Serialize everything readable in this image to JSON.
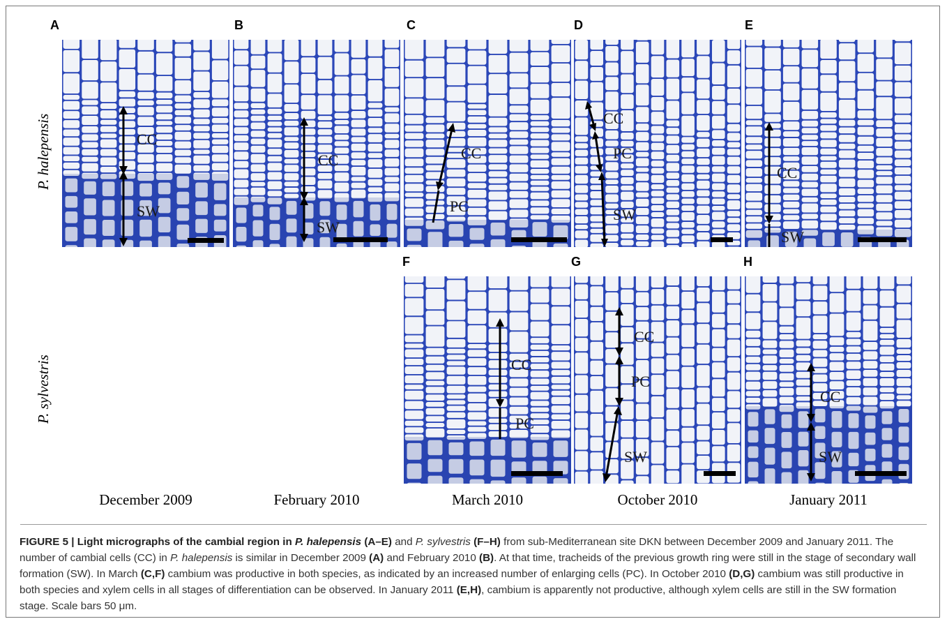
{
  "panels": [
    {
      "id": "A",
      "zones": [
        {
          "name": "CC"
        },
        {
          "name": "SW"
        }
      ]
    },
    {
      "id": "B",
      "zones": [
        {
          "name": "CC"
        },
        {
          "name": "SW"
        }
      ]
    },
    {
      "id": "C",
      "zones": [
        {
          "name": "CC"
        },
        {
          "name": "PC"
        }
      ]
    },
    {
      "id": "D",
      "zones": [
        {
          "name": "CC"
        },
        {
          "name": "PC"
        },
        {
          "name": "SW"
        }
      ]
    },
    {
      "id": "E",
      "zones": [
        {
          "name": "CC"
        },
        {
          "name": "SW"
        }
      ]
    },
    {
      "id": "F",
      "zones": [
        {
          "name": "CC"
        },
        {
          "name": "PC"
        }
      ]
    },
    {
      "id": "G",
      "zones": [
        {
          "name": "CC"
        },
        {
          "name": "PC"
        },
        {
          "name": "SW"
        }
      ]
    },
    {
      "id": "H",
      "zones": [
        {
          "name": "CC"
        },
        {
          "name": "SW"
        }
      ]
    }
  ],
  "species": {
    "row1": "P. halepensis",
    "row2": "P. sylvestris"
  },
  "dates": [
    "December 2009",
    "February 2010",
    "March 2010",
    "October 2010",
    "January 2011"
  ],
  "caption": {
    "fig": "FIGURE 5 | Light micrographs of the cambial region in ",
    "sp1": "P. halepensis",
    "r1": "(A–E)",
    "and": " and ",
    "sp2": "P. sylvestris",
    "r2": "(F–H)",
    "t1": " from sub-Mediterranean site DKN between December 2009 and January 2011. The number of cambial cells (CC) in ",
    "sp3": "P. halepensis",
    "t2": " is similar in December 2009 ",
    "rA": "(A)",
    "t3": " and February 2010 ",
    "rB": "(B)",
    "t4": ". At that time, tracheids of the previous growth ring were still in the stage of secondary wall formation (SW). In March ",
    "rCF": "(C,F)",
    "t5": " cambium was productive in both species, as indicated by an increased number of enlarging cells (PC). In October 2010 ",
    "rDG": "(D,G)",
    "t6": " cambium was still productive in both species and xylem cells in all stages of differentiation can be observed. In January 2011 ",
    "rEH": "(E,H)",
    "t7": ", cambium is apparently not productive, although xylem cells are still in the SW formation stage. Scale bars 50 μm."
  },
  "colors": {
    "wall": "#2b47b8",
    "lumen": "#f1f3f8",
    "dense": "#1f3596",
    "bg": "#c9d7ef"
  }
}
